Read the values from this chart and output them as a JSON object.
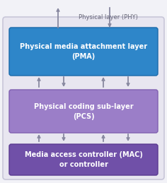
{
  "bg_color": "#f2f2f7",
  "outer_box_color": "#e8e6f0",
  "outer_box_edge": "#c8c6d8",
  "pma_color": "#2e86c9",
  "pma_edge": "#1a6aaa",
  "pma_text": "Physical media attachment layer\n(PMA)",
  "pcs_color": "#9b7ec8",
  "pcs_edge": "#8060b0",
  "pcs_text": "Physical coding sub-layer\n(PCS)",
  "mac_color": "#7050a8",
  "mac_edge": "#5a3a90",
  "mac_text": "Media access controller (MAC)\nor controller",
  "phy_label": "Physical layer (PHY)",
  "arrow_color": "#8888a0",
  "text_color": "#ffffff",
  "label_color": "#666677",
  "figsize": [
    2.36,
    2.59
  ],
  "dpi": 100
}
